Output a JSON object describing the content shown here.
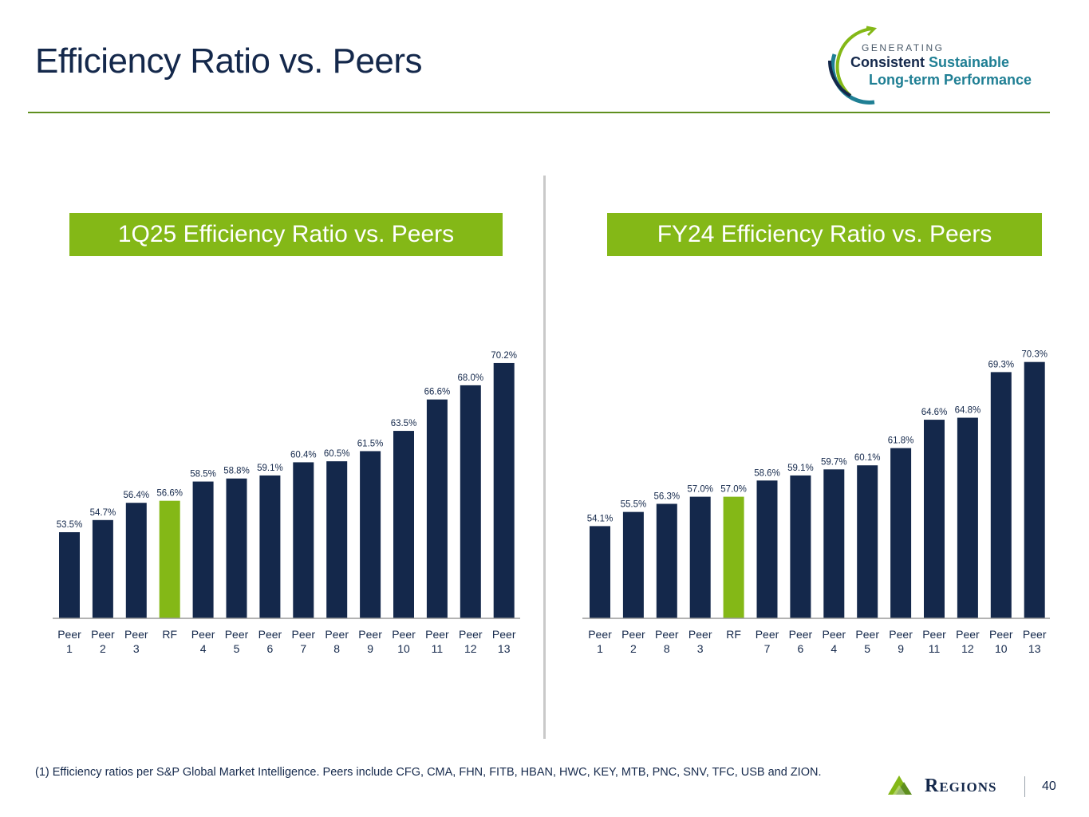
{
  "slide": {
    "title": "Efficiency Ratio vs. Peers",
    "tagline": {
      "line1": "GENERATING",
      "line2a": "Consistent",
      "line2b": "Sustainable",
      "line3": "Long-term Performance"
    },
    "footnote": "(1) Efficiency ratios per S&P Global Market Intelligence. Peers include CFG, CMA, FHN, FITB, HBAN, HWC, KEY, MTB, PNC, SNV, TFC, USB and ZION.",
    "logo_text": "Regions",
    "page_number": "40"
  },
  "colors": {
    "navy": "#14284b",
    "green": "#84b817",
    "rule_green": "#5f8f1f",
    "teal": "#1f7f94"
  },
  "chart_data": [
    {
      "type": "bar",
      "title": "1Q25 Efficiency Ratio vs. Peers",
      "categories": [
        [
          "Peer",
          "1"
        ],
        [
          "Peer",
          "2"
        ],
        [
          "Peer",
          "3"
        ],
        [
          "RF"
        ],
        [
          "Peer",
          "4"
        ],
        [
          "Peer",
          "5"
        ],
        [
          "Peer",
          "6"
        ],
        [
          "Peer",
          "7"
        ],
        [
          "Peer",
          "8"
        ],
        [
          "Peer",
          "9"
        ],
        [
          "Peer",
          "10"
        ],
        [
          "Peer",
          "11"
        ],
        [
          "Peer",
          "12"
        ],
        [
          "Peer",
          "13"
        ]
      ],
      "values": [
        53.5,
        54.7,
        56.4,
        56.6,
        58.5,
        58.8,
        59.1,
        60.4,
        60.5,
        61.5,
        63.5,
        66.6,
        68.0,
        70.2
      ],
      "value_labels": [
        "53.5%",
        "54.7%",
        "56.4%",
        "56.6%",
        "58.5%",
        "58.8%",
        "59.1%",
        "60.4%",
        "60.5%",
        "61.5%",
        "63.5%",
        "66.6%",
        "68.0%",
        "70.2%"
      ],
      "highlight_category": "RF",
      "xlabel": "",
      "ylabel": "",
      "grid": false,
      "legend": "none"
    },
    {
      "type": "bar",
      "title": "FY24 Efficiency Ratio vs. Peers",
      "categories": [
        [
          "Peer",
          "1"
        ],
        [
          "Peer",
          "2"
        ],
        [
          "Peer",
          "8"
        ],
        [
          "Peer",
          "3"
        ],
        [
          "RF"
        ],
        [
          "Peer",
          "7"
        ],
        [
          "Peer",
          "6"
        ],
        [
          "Peer",
          "4"
        ],
        [
          "Peer",
          "5"
        ],
        [
          "Peer",
          "9"
        ],
        [
          "Peer",
          "11"
        ],
        [
          "Peer",
          "12"
        ],
        [
          "Peer",
          "10"
        ],
        [
          "Peer",
          "13"
        ]
      ],
      "values": [
        54.1,
        55.5,
        56.3,
        57.0,
        57.0,
        58.6,
        59.1,
        59.7,
        60.1,
        61.8,
        64.6,
        64.8,
        69.3,
        70.3
      ],
      "value_labels": [
        "54.1%",
        "55.5%",
        "56.3%",
        "57.0%",
        "57.0%",
        "58.6%",
        "59.1%",
        "59.7%",
        "60.1%",
        "61.8%",
        "64.6%",
        "64.8%",
        "69.3%",
        "70.3%"
      ],
      "highlight_category": "RF",
      "xlabel": "",
      "ylabel": "",
      "grid": false,
      "legend": "none"
    }
  ]
}
